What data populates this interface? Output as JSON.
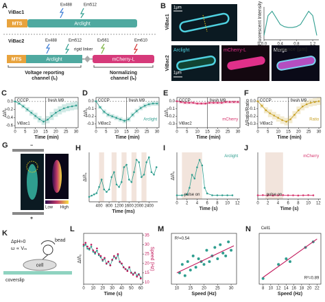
{
  "figure": {
    "a": {
      "letter": "A",
      "vibac1": "ViBac1",
      "mts1": "MTS",
      "arclight1": "Arclight",
      "ex1": "Ex488",
      "em1": "Em512",
      "vibac2": "ViBac2",
      "mts2": "MTS",
      "arclight2": "Arclight",
      "ex2": "Ex488",
      "em2": "Em512",
      "linker": "rigid linker",
      "ex3": "Ex561",
      "em3": "Em610",
      "mcherry": "mCherry-L",
      "voltage": "Voltage reporting",
      "voltage2": "channel (Iᵥ)",
      "norm": "Normalizing",
      "norm2": "channel (Iₙ)"
    },
    "b": {
      "letter": "B",
      "scale1": "1μm",
      "vibac1": "ViBac1",
      "vibac2": "ViBac2",
      "arclight": "Arclight",
      "mcherry": "mCherry-L",
      "merge": "Merge",
      "scale2": "1μm"
    },
    "g": {
      "letter": "G",
      "minus": "−",
      "plus": "+",
      "low": "Low",
      "high": "High"
    },
    "k": {
      "letter": "K",
      "dph": "ΔpH≈0",
      "omega": "ω ∝ Vₘ",
      "bead": "bead",
      "cell": "cell",
      "coverslip": "coverslip"
    }
  },
  "chart_data": [
    {
      "type": "line",
      "xlabel": "Distance (μm)",
      "ylabel": "Fluorescent Intensity",
      "x": [
        0,
        0.1,
        0.2,
        0.3,
        0.4,
        0.5,
        0.6,
        0.7,
        0.8,
        0.9,
        1.0,
        1.1,
        1.2,
        1.3
      ],
      "xlim": [
        0,
        1.35
      ],
      "ylim": [
        0.2,
        0.95
      ],
      "xticks": [
        {
          "value": 0,
          "label": "0.0"
        },
        0.4,
        0.8,
        1.2
      ],
      "series": [
        {
          "color": "#2f9e8f",
          "line": true,
          "values": [
            0.3,
            0.75,
            0.85,
            0.7,
            0.55,
            0.5,
            0.48,
            0.48,
            0.5,
            0.55,
            0.7,
            0.85,
            0.75,
            0.3
          ]
        }
      ]
    },
    {
      "type": "line",
      "panel": "C",
      "xlabel": "Time (min)",
      "ylabel": "ΔI/I₀",
      "x": [
        0,
        2,
        4,
        6,
        8,
        10,
        12,
        14,
        16,
        18,
        20,
        22,
        24,
        26,
        28,
        30
      ],
      "xlim": [
        0,
        31
      ],
      "ylim": [
        -0.65,
        0.1
      ],
      "xticks": [
        0,
        5,
        10,
        15,
        20,
        25,
        30
      ],
      "yticks": [
        {
          "value": 0,
          "label": "0.0"
        },
        -0.2,
        -0.4,
        -0.6
      ],
      "hline": 0,
      "vline": 15,
      "labels": [
        {
          "text": "CCCP"
        },
        {
          "text": "fresh M9"
        },
        {
          "text": "ViBac1"
        }
      ],
      "series": [
        {
          "color": "#2f9e8f",
          "line": true,
          "markers": true,
          "values": [
            0,
            -0.05,
            -0.12,
            -0.2,
            -0.28,
            -0.36,
            -0.44,
            -0.5,
            -0.45,
            -0.36,
            -0.28,
            -0.22,
            -0.17,
            -0.14,
            -0.12,
            -0.1
          ],
          "errors": [
            0.02,
            0.04,
            0.05,
            0.06,
            0.07,
            0.08,
            0.08,
            0.08,
            0.09,
            0.1,
            0.1,
            0.1,
            0.1,
            0.1,
            0.1,
            0.1
          ]
        }
      ]
    },
    {
      "type": "line",
      "panel": "D",
      "xlabel": "Time (min)",
      "ylabel": "ΔI/I₀",
      "x": [
        0,
        2,
        4,
        6,
        8,
        10,
        12,
        14,
        16,
        18,
        20,
        22,
        24,
        26,
        28,
        30
      ],
      "xlim": [
        0,
        31
      ],
      "ylim": [
        -0.35,
        0.05
      ],
      "xticks": [
        0,
        5,
        10,
        15,
        20,
        25,
        30
      ],
      "yticks": [
        {
          "value": 0,
          "label": "0.0"
        },
        -0.1,
        -0.2,
        -0.3
      ],
      "hline": 0,
      "vline": 15,
      "labels": [
        {
          "text": "CCCP"
        },
        {
          "text": "fresh M9"
        },
        {
          "text": "ViBac2"
        },
        {
          "text": "Arclight",
          "color": "#2f9e8f"
        }
      ],
      "series": [
        {
          "color": "#2f9e8f",
          "line": true,
          "markers": true,
          "values": [
            0,
            -0.08,
            -0.14,
            -0.18,
            -0.2,
            -0.22,
            -0.24,
            -0.26,
            -0.24,
            -0.18,
            -0.13,
            -0.09,
            -0.06,
            -0.04,
            -0.03,
            -0.03
          ],
          "errors": [
            0.01,
            0.02,
            0.03,
            0.03,
            0.03,
            0.03,
            0.03,
            0.03,
            0.03,
            0.03,
            0.03,
            0.03,
            0.03,
            0.03,
            0.03,
            0.03
          ]
        }
      ]
    },
    {
      "type": "line",
      "panel": "E",
      "xlabel": "Time (min)",
      "ylabel": "ΔI/I₀",
      "x": [
        0,
        2,
        4,
        6,
        8,
        10,
        12,
        14,
        16,
        18,
        20,
        22,
        24,
        26,
        28,
        30
      ],
      "xlim": [
        0,
        31
      ],
      "ylim": [
        -0.35,
        0.05
      ],
      "xticks": [
        0,
        5,
        10,
        15,
        20,
        25,
        30
      ],
      "yticks": [
        {
          "value": 0,
          "label": "0.0"
        },
        -0.1,
        -0.2,
        -0.3
      ],
      "hline": 0,
      "vline": 15,
      "labels": [
        {
          "text": "CCCP"
        },
        {
          "text": "fresh M9"
        },
        {
          "text": "ViBac2"
        },
        {
          "text": "mCherry",
          "color": "#d6336c"
        }
      ],
      "series": [
        {
          "color": "#d6336c",
          "line": true,
          "markers": true,
          "values": [
            0,
            -0.01,
            -0.02,
            -0.02,
            -0.02,
            -0.03,
            -0.03,
            -0.03,
            -0.02,
            -0.02,
            -0.02,
            -0.02,
            -0.01,
            -0.01,
            -0.01,
            -0.01
          ],
          "errors": [
            0.01,
            0.02,
            0.02,
            0.02,
            0.02,
            0.02,
            0.02,
            0.02,
            0.02,
            0.02,
            0.02,
            0.02,
            0.02,
            0.02,
            0.02,
            0.02
          ]
        }
      ]
    },
    {
      "type": "line",
      "panel": "F",
      "xlabel": "Time (min)",
      "ylabel": "ΔRatio/Ratio",
      "x": [
        0,
        2,
        4,
        6,
        8,
        10,
        12,
        14,
        16,
        18,
        20,
        22,
        24,
        26,
        28,
        30
      ],
      "xlim": [
        0,
        31
      ],
      "ylim": [
        -0.35,
        0.05
      ],
      "xticks": [
        0,
        5,
        10,
        15,
        20,
        25,
        30
      ],
      "yticks": [
        {
          "value": 0,
          "label": "0.0"
        },
        -0.1,
        -0.2,
        -0.3
      ],
      "hline": 0,
      "vline": 15,
      "labels": [
        {
          "text": "CCCP"
        },
        {
          "text": "fresh M9"
        },
        {
          "text": "ViBac2"
        },
        {
          "text": "Ratio",
          "color": "#c9a227"
        }
      ],
      "series": [
        {
          "color": "#c9a227",
          "line": true,
          "markers": true,
          "values": [
            0,
            -0.06,
            -0.12,
            -0.16,
            -0.19,
            -0.22,
            -0.25,
            -0.27,
            -0.24,
            -0.18,
            -0.12,
            -0.07,
            -0.04,
            -0.02,
            -0.01,
            0
          ],
          "errors": [
            0.01,
            0.03,
            0.04,
            0.05,
            0.05,
            0.05,
            0.05,
            0.05,
            0.05,
            0.05,
            0.05,
            0.05,
            0.05,
            0.05,
            0.05,
            0.05
          ]
        }
      ]
    },
    {
      "type": "line",
      "panel": "H",
      "xlabel": "Time (ms)",
      "ylabel": "ΔI/I₀",
      "x": [
        0,
        100,
        200,
        300,
        400,
        500,
        600,
        700,
        800,
        900,
        1000,
        1100,
        1200,
        1300,
        1400,
        1500,
        1600,
        1700,
        1800,
        1900,
        2000,
        2100,
        2200,
        2300,
        2400,
        2500,
        2600,
        2700
      ],
      "xlim": [
        0,
        2750
      ],
      "ylim": [
        0,
        2.0
      ],
      "xticks": [
        400,
        800,
        1200,
        1600,
        2000,
        2400
      ],
      "shaded": [
        [
          400,
          600
        ],
        [
          900,
          1100
        ],
        [
          1300,
          1500
        ],
        [
          1700,
          1900
        ],
        [
          2100,
          2300
        ]
      ],
      "series": [
        {
          "color": "#2f9e8f",
          "line": true,
          "markers": true,
          "values": [
            0.2,
            0.25,
            0.3,
            0.35,
            0.6,
            0.9,
            0.5,
            0.4,
            0.5,
            1.0,
            1.2,
            0.7,
            0.6,
            0.8,
            1.4,
            1.5,
            0.9,
            0.8,
            1.2,
            1.7,
            1.6,
            1.0,
            1.1,
            1.6,
            1.8,
            1.2,
            1.1,
            1.4
          ]
        }
      ]
    },
    {
      "type": "line",
      "panel": "I",
      "xlabel": "Time (s)",
      "ylabel": "ΔI/I₀",
      "x": [
        0,
        1,
        2,
        2.5,
        3,
        3.5,
        4,
        4.5,
        5,
        5.5,
        6,
        7,
        8,
        9,
        10,
        11
      ],
      "xlim": [
        0,
        12.5
      ],
      "ylim": [
        -0.2,
        2.3
      ],
      "xticks": [
        0,
        2,
        4,
        6,
        8,
        10,
        12
      ],
      "shaded": [
        [
          1,
          5
        ]
      ],
      "labels": [
        {
          "text": "Arclight",
          "color": "#2f9e8f"
        },
        {
          "text": "pulse on"
        }
      ],
      "series": [
        {
          "color": "#2f9e8f",
          "line": true,
          "markers": true,
          "values": [
            0,
            0,
            0.05,
            0.4,
            1.1,
            0.9,
            1.5,
            1.9,
            1.6,
            0.4,
            0.1,
            0,
            0,
            0,
            0,
            0
          ]
        }
      ]
    },
    {
      "type": "line",
      "panel": "J",
      "xlabel": "Time (s)",
      "x": [
        0,
        1,
        2,
        3,
        4,
        5,
        6,
        7,
        8,
        9,
        10,
        11
      ],
      "xlim": [
        0,
        12.5
      ],
      "ylim": [
        -0.2,
        2.3
      ],
      "xticks": [
        0,
        2,
        4,
        6,
        8,
        10,
        12
      ],
      "shaded": [
        [
          1.5,
          5
        ]
      ],
      "labels": [
        {
          "text": "mCherry",
          "color": "#d6336c"
        },
        {
          "text": "pulse on"
        }
      ],
      "series": [
        {
          "color": "#d6336c",
          "line": true,
          "markers": true,
          "values": [
            0,
            0.01,
            0,
            -0.01,
            0,
            0.01,
            0,
            0,
            -0.01,
            0,
            0.01,
            0
          ]
        }
      ]
    },
    {
      "type": "line",
      "panel": "L",
      "xlabel": "Time (s)",
      "ylabel": "ΔI/I₀",
      "y2label": "Speed (Hz)",
      "x": [
        0,
        2,
        4,
        6,
        8,
        10,
        12,
        14,
        16,
        18,
        20,
        22,
        24,
        26,
        28,
        30,
        32,
        34,
        36,
        38,
        40,
        42,
        44,
        46,
        48,
        50,
        52,
        54,
        56,
        58,
        60
      ],
      "xlim": [
        0,
        62
      ],
      "ylim": [
        0,
        1
      ],
      "y2lim": [
        9,
        36
      ],
      "xticks": [
        0,
        10,
        20,
        30,
        40,
        50,
        60
      ],
      "y2ticks": [
        10,
        15,
        20,
        25,
        30,
        35
      ],
      "series": [
        {
          "color": "#2f9e8f",
          "line": true,
          "markers": true,
          "values": [
            0.75,
            0.78,
            0.7,
            0.68,
            0.74,
            0.64,
            0.6,
            0.66,
            0.57,
            0.53,
            0.46,
            0.5,
            0.4,
            0.44,
            0.37,
            0.47,
            0.54,
            0.5,
            0.57,
            0.43,
            0.4,
            0.33,
            0.3,
            0.27,
            0.33,
            0.23,
            0.2,
            0.23,
            0.17,
            0.2,
            0.13
          ]
        },
        {
          "color": "#c2185b",
          "axis": "y2",
          "markers": true,
          "values": [
            30,
            31,
            29,
            28,
            30,
            27,
            26,
            28,
            25,
            24,
            22,
            23,
            20,
            21,
            19,
            22,
            24,
            23,
            25,
            21,
            20,
            18,
            17,
            16,
            18,
            15,
            14,
            15,
            13,
            14,
            12
          ]
        }
      ]
    },
    {
      "type": "scatter",
      "panel": "M",
      "xlabel": "Speed (Hz)",
      "xlim": [
        8,
        32
      ],
      "ylim": [
        0.1,
        1
      ],
      "xticks": [
        10,
        15,
        20,
        25,
        30
      ],
      "labels": [
        {
          "text": "R²=0.54"
        }
      ],
      "series": [
        {
          "color": "#2f9e8f",
          "markers": true,
          "x": [
            11,
            12,
            13,
            14,
            15,
            16,
            17,
            18,
            19,
            20,
            21,
            22,
            23,
            24,
            25,
            26,
            27,
            28,
            29,
            30
          ],
          "values": [
            0.3,
            0.45,
            0.25,
            0.5,
            0.35,
            0.6,
            0.4,
            0.55,
            0.5,
            0.45,
            0.7,
            0.5,
            0.6,
            0.75,
            0.55,
            0.8,
            0.65,
            0.6,
            0.85,
            0.7
          ]
        },
        {
          "color": "#c2185b",
          "line": true,
          "x": [
            10,
            31
          ],
          "values": [
            0.3,
            0.78
          ]
        }
      ]
    },
    {
      "type": "scatter",
      "panel": "N",
      "xlabel": "Speed (Hz)",
      "xlim": [
        7,
        23
      ],
      "ylim": [
        0.1,
        1
      ],
      "xticks": [
        8,
        10,
        12,
        14,
        16,
        18,
        20,
        22
      ],
      "labels": [
        {
          "text": "Cell1"
        },
        {
          "text": "R²=0.89"
        }
      ],
      "series": [
        {
          "color": "#2f9e8f",
          "markers": true,
          "x": [
            8,
            12,
            14,
            15,
            19,
            21
          ],
          "values": [
            0.2,
            0.45,
            0.55,
            0.5,
            0.75,
            0.85
          ]
        },
        {
          "color": "#c2185b",
          "line": true,
          "x": [
            8,
            22
          ],
          "values": [
            0.22,
            0.9
          ]
        }
      ]
    }
  ]
}
